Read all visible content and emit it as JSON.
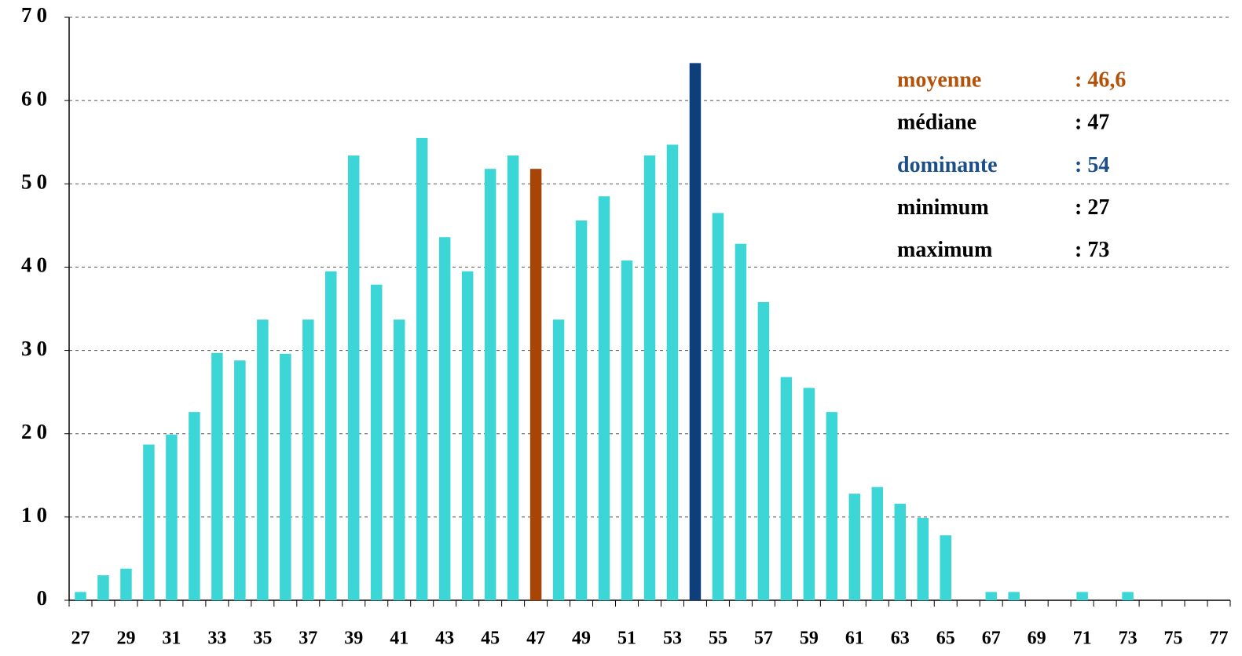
{
  "chart_data": {
    "type": "bar",
    "categories": [
      27,
      null,
      29,
      null,
      31,
      null,
      33,
      null,
      35,
      null,
      37,
      null,
      39,
      null,
      41,
      null,
      43,
      null,
      45,
      null,
      47,
      null,
      49,
      null,
      51,
      null,
      53,
      null,
      55,
      null,
      57,
      null,
      59,
      null,
      61,
      null,
      63,
      null,
      65,
      null,
      67,
      null,
      69,
      null,
      71,
      null,
      73,
      null,
      75,
      null,
      77
    ],
    "values": [
      1,
      3,
      3.8,
      18.7,
      19.9,
      22.6,
      29.7,
      28.8,
      33.7,
      29.6,
      33.7,
      39.5,
      53.4,
      37.9,
      33.7,
      55.5,
      43.6,
      39.5,
      51.8,
      53.4,
      51.8,
      33.7,
      45.6,
      48.5,
      40.8,
      53.4,
      54.7,
      64.5,
      46.5,
      42.8,
      35.8,
      26.8,
      25.5,
      22.6,
      12.8,
      13.6,
      11.6,
      9.9,
      7.8,
      0,
      1,
      1,
      0,
      0,
      1,
      0,
      1,
      0,
      0,
      0,
      0
    ],
    "colors": [
      "#3dd6d6",
      "#3dd6d6",
      "#3dd6d6",
      "#3dd6d6",
      "#3dd6d6",
      "#3dd6d6",
      "#3dd6d6",
      "#3dd6d6",
      "#3dd6d6",
      "#3dd6d6",
      "#3dd6d6",
      "#3dd6d6",
      "#3dd6d6",
      "#3dd6d6",
      "#3dd6d6",
      "#3dd6d6",
      "#3dd6d6",
      "#3dd6d6",
      "#3dd6d6",
      "#3dd6d6",
      "#a94407",
      "#3dd6d6",
      "#3dd6d6",
      "#3dd6d6",
      "#3dd6d6",
      "#3dd6d6",
      "#3dd6d6",
      "#0e3f7a",
      "#3dd6d6",
      "#3dd6d6",
      "#3dd6d6",
      "#3dd6d6",
      "#3dd6d6",
      "#3dd6d6",
      "#3dd6d6",
      "#3dd6d6",
      "#3dd6d6",
      "#3dd6d6",
      "#3dd6d6",
      "#3dd6d6",
      "#3dd6d6",
      "#3dd6d6",
      "#3dd6d6",
      "#3dd6d6",
      "#3dd6d6",
      "#3dd6d6",
      "#3dd6d6",
      "#3dd6d6",
      "#3dd6d6",
      "#3dd6d6",
      "#3dd6d6"
    ],
    "ylim": [
      0,
      70
    ],
    "yticks": [
      0,
      10,
      20,
      30,
      40,
      50,
      60,
      70
    ],
    "grid": true,
    "annotations": [
      {
        "label": "moyenne",
        "value": ": 46,6",
        "color": "#b5520a"
      },
      {
        "label": "médiane",
        "value": ": 47",
        "color": "#000000"
      },
      {
        "label": "dominante",
        "value": ": 54",
        "color": "#1a4f8a"
      },
      {
        "label": "minimum",
        "value": ": 27",
        "color": "#000000"
      },
      {
        "label": "maximum",
        "value": ": 73",
        "color": "#000000"
      }
    ]
  }
}
